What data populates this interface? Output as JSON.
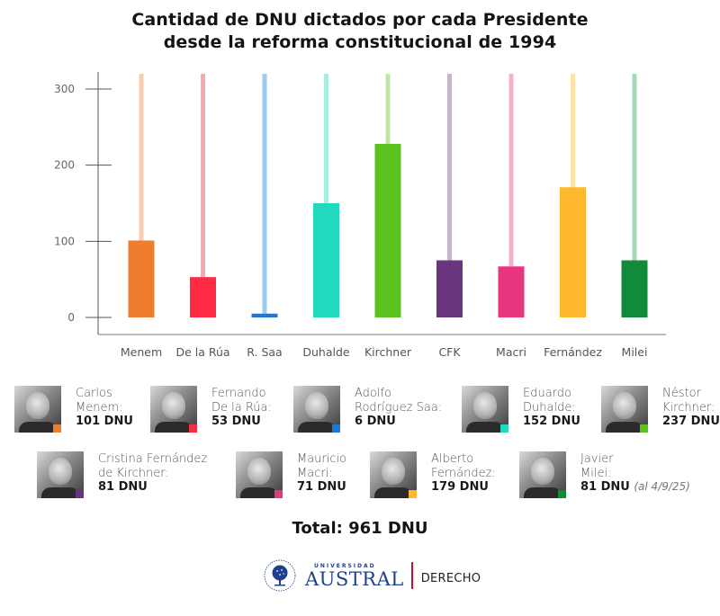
{
  "title": {
    "line1": "Cantidad de DNU dictados por cada Presidente",
    "line2": "desde la reforma constitucional de 1994"
  },
  "chart_data": {
    "type": "bar",
    "title": "Cantidad de DNU dictados por cada Presidente desde la reforma constitucional de 1994",
    "xlabel": "",
    "ylabel": "",
    "ylim": [
      0,
      320
    ],
    "yticks": [
      0,
      100,
      200,
      300
    ],
    "grid": false,
    "legend": "below (presidents with photos)",
    "categories": [
      "Menem",
      "De la Rúa",
      "R. Saa",
      "Duhalde",
      "Kirchner",
      "CFK",
      "Macri",
      "Fernández",
      "Milei"
    ],
    "values": [
      101,
      53,
      6,
      152,
      237,
      81,
      71,
      179,
      81
    ],
    "drawn_values": [
      101,
      53,
      5,
      150,
      228,
      75,
      67,
      171,
      75
    ],
    "colors": [
      "#ee7d2e",
      "#ff2b45",
      "#1f78d6",
      "#22d8bd",
      "#5cc21e",
      "#6a357f",
      "#e8357f",
      "#ffb82e",
      "#118a3a"
    ],
    "stem_colors": [
      "#f8ccb0",
      "#f7a9b2",
      "#9ccbf0",
      "#a6ece0",
      "#bfe6a6",
      "#c8b3d6",
      "#f5b0cc",
      "#fde1a6",
      "#a6d8b8"
    ]
  },
  "presidents": [
    {
      "first": "Carlos",
      "last": "Menem:",
      "value": "101 DNU",
      "color": "#ee7d2e"
    },
    {
      "first": "Fernando",
      "last": "De la Rúa:",
      "value": "53 DNU",
      "color": "#ff2b45"
    },
    {
      "first": "Adolfo",
      "last": "Rodríguez Saa:",
      "value": "6 DNU",
      "color": "#1f78d6"
    },
    {
      "first": "Eduardo",
      "last": "Duhalde:",
      "value": "152 DNU",
      "color": "#22d8bd"
    },
    {
      "first": "Néstor",
      "last": "Kirchner:",
      "value": "237 DNU",
      "color": "#5cc21e"
    },
    {
      "first": "Cristina Fernández",
      "last": "de Kirchner:",
      "value": "81 DNU",
      "color": "#6a357f"
    },
    {
      "first": "Mauricio",
      "last": "Macri:",
      "value": "71 DNU",
      "color": "#e8357f"
    },
    {
      "first": "Alberto",
      "last": "Fernández:",
      "value": "179 DNU",
      "color": "#ffb82e"
    },
    {
      "first": "Javier",
      "last": "Milei:",
      "value": "81 DNU",
      "color": "#118a3a",
      "note": "(al 4/9/25)"
    }
  ],
  "total": "Total: 961 DNU",
  "logo": {
    "small": "UNIVERSIDAD",
    "name": "AUSTRAL",
    "department": "DERECHO"
  }
}
